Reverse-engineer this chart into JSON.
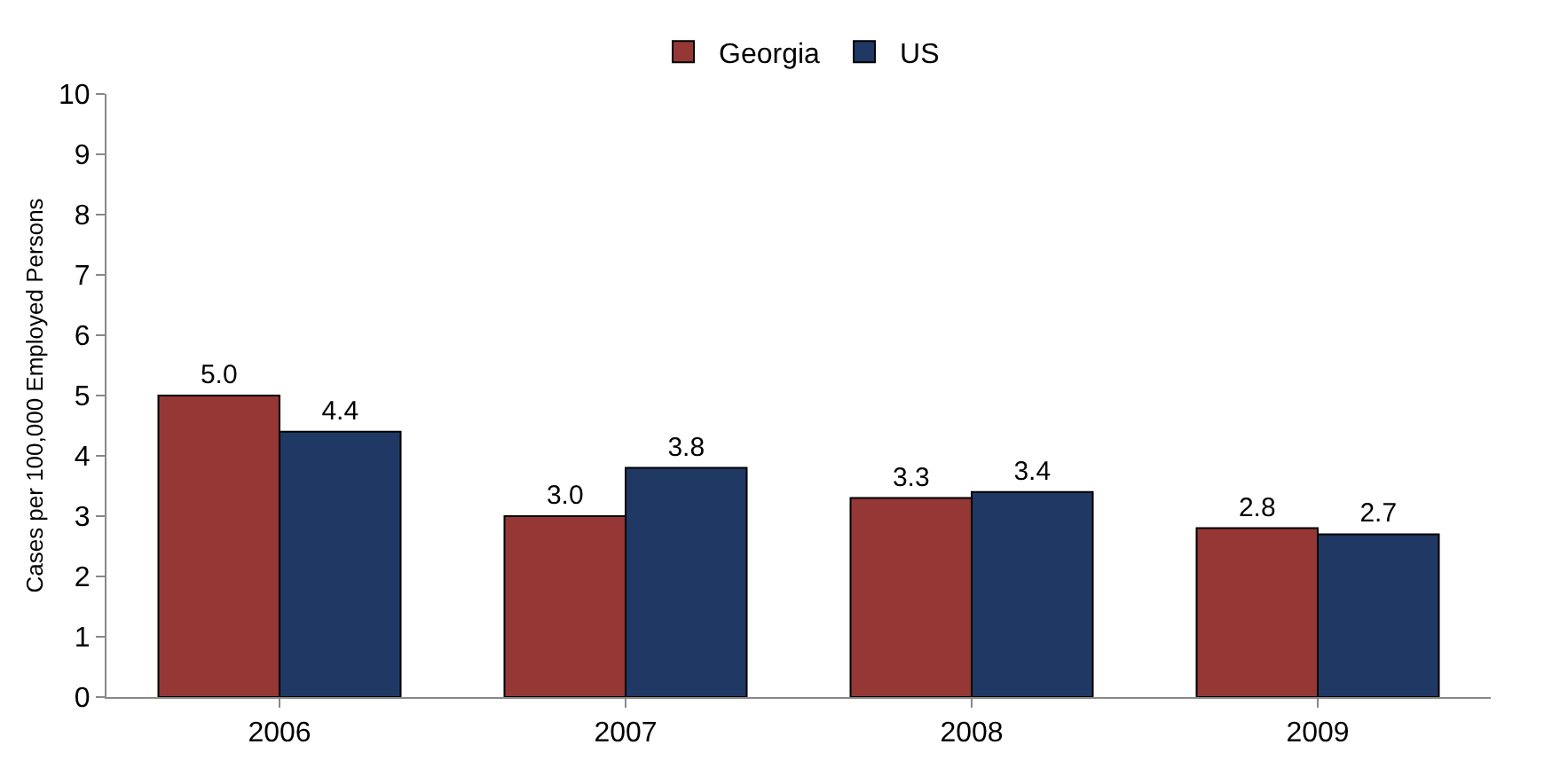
{
  "chart_data": {
    "type": "bar",
    "ylabel": "Cases per 100,000 Employed Persons",
    "categories": [
      "2006",
      "2007",
      "2008",
      "2009"
    ],
    "series": [
      {
        "name": "Georgia",
        "color": "#953735",
        "values": [
          5.0,
          3.0,
          3.3,
          2.8
        ],
        "value_labels": [
          "5.0",
          "3.0",
          "3.3",
          "2.8"
        ]
      },
      {
        "name": "US",
        "color": "#1f3864",
        "values": [
          4.4,
          3.8,
          3.4,
          2.7
        ],
        "value_labels": [
          "4.4",
          "3.8",
          "3.4",
          "2.7"
        ]
      }
    ],
    "ylim": [
      0,
      10
    ],
    "yticks": [
      0,
      1,
      2,
      3,
      4,
      5,
      6,
      7,
      8,
      9,
      10
    ],
    "grid": false,
    "legend": "top"
  }
}
